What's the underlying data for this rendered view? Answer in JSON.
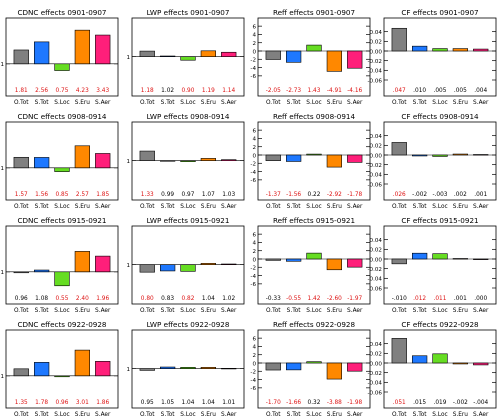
{
  "figure": {
    "categories": [
      "O.Tot",
      "S.Tot",
      "S.Loc",
      "S.Eru",
      "S.Aer"
    ],
    "colors": [
      "#808080",
      "#1e78ff",
      "#66dd22",
      "#ff8800",
      "#ff1f7a"
    ],
    "label_colors": {
      "red": "#dd1111",
      "black": "#000000"
    }
  },
  "chart_data": [
    {
      "type": "bar",
      "title": "CDNC effects 0901-0907",
      "categories": [
        "O.Tot",
        "S.Tot",
        "S.Loc",
        "S.Eru",
        "S.Aer"
      ],
      "values": [
        1.81,
        2.56,
        0.75,
        4.23,
        3.43
      ],
      "value_labels": [
        "1.81",
        "2.56",
        "0.75",
        "4.23",
        "3.43"
      ],
      "label_colors": [
        "red",
        "red",
        "red",
        "red",
        "red"
      ],
      "log_scale": true,
      "ylim": [
        0.5,
        6.0
      ],
      "yticks": [
        1
      ],
      "yticklabels": [
        "1"
      ]
    },
    {
      "type": "bar",
      "title": "LWP effects 0901-0907",
      "categories": [
        "O.Tot",
        "S.Tot",
        "S.Loc",
        "S.Eru",
        "S.Aer"
      ],
      "values": [
        1.18,
        1.02,
        0.9,
        1.19,
        1.14
      ],
      "value_labels": [
        "1.18",
        "1.02",
        "0.90",
        "1.19",
        "1.14"
      ],
      "label_colors": [
        "red",
        "black",
        "red",
        "red",
        "red"
      ],
      "log_scale": true,
      "ylim": [
        0.5,
        2.8
      ],
      "yticks": [
        1
      ],
      "yticklabels": [
        "1"
      ]
    },
    {
      "type": "bar",
      "title": "Reff effects 0901-0907",
      "categories": [
        "O.Tot",
        "S.Tot",
        "S.Loc",
        "S.Eru",
        "S.Aer"
      ],
      "values": [
        -2.05,
        -2.73,
        1.43,
        -4.91,
        -4.16
      ],
      "value_labels": [
        "-2.05",
        "-2.73",
        "1.43",
        "-4.91",
        "-4.16"
      ],
      "label_colors": [
        "red",
        "red",
        "red",
        "red",
        "red"
      ],
      "log_scale": false,
      "ylim": [
        -7,
        7
      ],
      "yticks": [
        -6,
        -4,
        -2,
        0,
        2,
        4,
        6
      ],
      "yticklabels": [
        "-6",
        "-4",
        "-2",
        "0",
        "2",
        "4",
        "6"
      ]
    },
    {
      "type": "bar",
      "title": "CF effects 0901-0907",
      "categories": [
        "O.Tot",
        "S.Tot",
        "S.Loc",
        "S.Eru",
        "S.Aer"
      ],
      "values": [
        0.047,
        0.01,
        0.005,
        0.005,
        0.004
      ],
      "value_labels": [
        ".047",
        ".010",
        ".005",
        ".005",
        ".004"
      ],
      "label_colors": [
        "red",
        "black",
        "black",
        "black",
        "black"
      ],
      "log_scale": false,
      "ylim": [
        -0.06,
        0.06
      ],
      "yticks": [
        -0.06,
        -0.04,
        -0.02,
        0.0,
        0.02,
        0.04
      ],
      "yticklabels": [
        "-0.06",
        "-0.04",
        "-0.02",
        "0.00",
        "0.02",
        "0.04"
      ]
    },
    {
      "type": "bar",
      "title": "CDNC effects 0908-0914",
      "categories": [
        "O.Tot",
        "S.Tot",
        "S.Loc",
        "S.Eru",
        "S.Aer"
      ],
      "values": [
        1.57,
        1.56,
        0.85,
        2.57,
        1.85
      ],
      "value_labels": [
        "1.57",
        "1.56",
        "0.85",
        "2.57",
        "1.85"
      ],
      "label_colors": [
        "red",
        "red",
        "red",
        "red",
        "red"
      ],
      "log_scale": true,
      "ylim": [
        0.5,
        6.0
      ],
      "yticks": [
        1
      ],
      "yticklabels": [
        "1"
      ]
    },
    {
      "type": "bar",
      "title": "LWP effects 0908-0914",
      "categories": [
        "O.Tot",
        "S.Tot",
        "S.Loc",
        "S.Eru",
        "S.Aer"
      ],
      "values": [
        1.33,
        0.99,
        0.97,
        1.07,
        1.03
      ],
      "value_labels": [
        "1.33",
        "0.99",
        "0.97",
        "1.07",
        "1.03"
      ],
      "label_colors": [
        "red",
        "black",
        "black",
        "black",
        "black"
      ],
      "log_scale": true,
      "ylim": [
        0.5,
        2.8
      ],
      "yticks": [
        1
      ],
      "yticklabels": [
        "1"
      ]
    },
    {
      "type": "bar",
      "title": "Reff effects 0908-0914",
      "categories": [
        "O.Tot",
        "S.Tot",
        "S.Loc",
        "S.Eru",
        "S.Aer"
      ],
      "values": [
        -1.37,
        -1.56,
        0.22,
        -2.92,
        -1.78
      ],
      "value_labels": [
        "-1.37",
        "-1.56",
        "0.22",
        "-2.92",
        "-1.78"
      ],
      "label_colors": [
        "red",
        "red",
        "black",
        "red",
        "red"
      ],
      "log_scale": false,
      "ylim": [
        -7,
        7
      ],
      "yticks": [
        -6,
        -4,
        -2,
        0,
        2,
        4,
        6
      ],
      "yticklabels": [
        "-6",
        "-4",
        "-2",
        "0",
        "2",
        "4",
        "6"
      ]
    },
    {
      "type": "bar",
      "title": "CF effects 0908-0914",
      "categories": [
        "O.Tot",
        "S.Tot",
        "S.Loc",
        "S.Eru",
        "S.Aer"
      ],
      "values": [
        0.026,
        -0.002,
        -0.003,
        0.002,
        0.001
      ],
      "value_labels": [
        ".026",
        "-.002",
        "-.003",
        ".002",
        ".001"
      ],
      "label_colors": [
        "red",
        "black",
        "black",
        "black",
        "black"
      ],
      "log_scale": false,
      "ylim": [
        -0.06,
        0.06
      ],
      "yticks": [
        -0.06,
        -0.04,
        -0.02,
        0.0,
        0.02,
        0.04
      ],
      "yticklabels": [
        "-0.06",
        "-0.04",
        "-0.02",
        "0.00",
        "0.02",
        "0.04"
      ]
    },
    {
      "type": "bar",
      "title": "CDNC effects 0915-0921",
      "categories": [
        "O.Tot",
        "S.Tot",
        "S.Loc",
        "S.Eru",
        "S.Aer"
      ],
      "values": [
        0.96,
        1.08,
        0.55,
        2.4,
        1.96
      ],
      "value_labels": [
        "0.96",
        "1.08",
        "0.55",
        "2.40",
        "1.96"
      ],
      "label_colors": [
        "black",
        "black",
        "red",
        "red",
        "red"
      ],
      "log_scale": true,
      "ylim": [
        0.5,
        6.0
      ],
      "yticks": [
        1
      ],
      "yticklabels": [
        "1"
      ]
    },
    {
      "type": "bar",
      "title": "LWP effects 0915-0921",
      "categories": [
        "O.Tot",
        "S.Tot",
        "S.Loc",
        "S.Eru",
        "S.Aer"
      ],
      "values": [
        0.8,
        0.83,
        0.82,
        1.04,
        1.02
      ],
      "value_labels": [
        "0.80",
        "0.83",
        "0.82",
        "1.04",
        "1.02"
      ],
      "label_colors": [
        "red",
        "black",
        "red",
        "black",
        "black"
      ],
      "log_scale": true,
      "ylim": [
        0.5,
        2.8
      ],
      "yticks": [
        1
      ],
      "yticklabels": [
        "1"
      ]
    },
    {
      "type": "bar",
      "title": "Reff effects 0915-0921",
      "categories": [
        "O.Tot",
        "S.Tot",
        "S.Loc",
        "S.Eru",
        "S.Aer"
      ],
      "values": [
        -0.33,
        -0.55,
        1.42,
        -2.6,
        -1.97
      ],
      "value_labels": [
        "-0.33",
        "-0.55",
        "1.42",
        "-2.60",
        "-1.97"
      ],
      "label_colors": [
        "black",
        "red",
        "red",
        "red",
        "red"
      ],
      "log_scale": false,
      "ylim": [
        -7,
        7
      ],
      "yticks": [
        -6,
        -4,
        -2,
        0,
        2,
        4,
        6
      ],
      "yticklabels": [
        "-6",
        "-4",
        "-2",
        "0",
        "2",
        "4",
        "6"
      ]
    },
    {
      "type": "bar",
      "title": "CF effects 0915-0921",
      "categories": [
        "O.Tot",
        "S.Tot",
        "S.Loc",
        "S.Eru",
        "S.Aer"
      ],
      "values": [
        -0.01,
        0.012,
        0.011,
        0.001,
        0.0
      ],
      "value_labels": [
        "-.010",
        ".012",
        ".011",
        ".001",
        ".000"
      ],
      "label_colors": [
        "black",
        "red",
        "red",
        "black",
        "black"
      ],
      "log_scale": false,
      "ylim": [
        -0.06,
        0.06
      ],
      "yticks": [
        -0.06,
        -0.04,
        -0.02,
        0.0,
        0.02,
        0.04
      ],
      "yticklabels": [
        "-0.06",
        "-0.04",
        "-0.02",
        "0.00",
        "0.02",
        "0.04"
      ]
    },
    {
      "type": "bar",
      "title": "CDNC effects 0922-0928",
      "categories": [
        "O.Tot",
        "S.Tot",
        "S.Loc",
        "S.Eru",
        "S.Aer"
      ],
      "values": [
        1.35,
        1.78,
        0.96,
        3.01,
        1.86
      ],
      "value_labels": [
        "1.35",
        "1.78",
        "0.96",
        "3.01",
        "1.86"
      ],
      "label_colors": [
        "red",
        "red",
        "red",
        "red",
        "red"
      ],
      "log_scale": true,
      "ylim": [
        0.5,
        6.0
      ],
      "yticks": [
        1
      ],
      "yticklabels": [
        "1"
      ]
    },
    {
      "type": "bar",
      "title": "LWP effects 0922-0928",
      "categories": [
        "O.Tot",
        "S.Tot",
        "S.Loc",
        "S.Eru",
        "S.Aer"
      ],
      "values": [
        0.95,
        1.05,
        1.04,
        1.04,
        1.01
      ],
      "value_labels": [
        "0.95",
        "1.05",
        "1.04",
        "1.04",
        "1.01"
      ],
      "label_colors": [
        "black",
        "black",
        "black",
        "black",
        "black"
      ],
      "log_scale": true,
      "ylim": [
        0.5,
        2.8
      ],
      "yticks": [
        1
      ],
      "yticklabels": [
        "1"
      ]
    },
    {
      "type": "bar",
      "title": "Reff effects 0922-0928",
      "categories": [
        "O.Tot",
        "S.Tot",
        "S.Loc",
        "S.Eru",
        "S.Aer"
      ],
      "values": [
        -1.7,
        -1.66,
        0.32,
        -3.88,
        -1.98
      ],
      "value_labels": [
        "-1.70",
        "-1.66",
        "0.32",
        "-3.88",
        "-1.98"
      ],
      "label_colors": [
        "red",
        "red",
        "black",
        "red",
        "red"
      ],
      "log_scale": false,
      "ylim": [
        -7,
        7
      ],
      "yticks": [
        -6,
        -4,
        -2,
        0,
        2,
        4,
        6
      ],
      "yticklabels": [
        "-6",
        "-4",
        "-2",
        "0",
        "2",
        "4",
        "6"
      ]
    },
    {
      "type": "bar",
      "title": "CF effects 0922-0928",
      "categories": [
        "O.Tot",
        "S.Tot",
        "S.Loc",
        "S.Eru",
        "S.Aer"
      ],
      "values": [
        0.051,
        0.015,
        0.019,
        -0.002,
        -0.004
      ],
      "value_labels": [
        ".051",
        ".015",
        ".019",
        "-.002",
        "-.004"
      ],
      "label_colors": [
        "red",
        "black",
        "black",
        "black",
        "black"
      ],
      "log_scale": false,
      "ylim": [
        -0.06,
        0.06
      ],
      "yticks": [
        -0.06,
        -0.04,
        -0.02,
        0.0,
        0.02,
        0.04
      ],
      "yticklabels": [
        "-0.06",
        "-0.04",
        "-0.02",
        "0.00",
        "0.02",
        "0.04"
      ]
    }
  ]
}
